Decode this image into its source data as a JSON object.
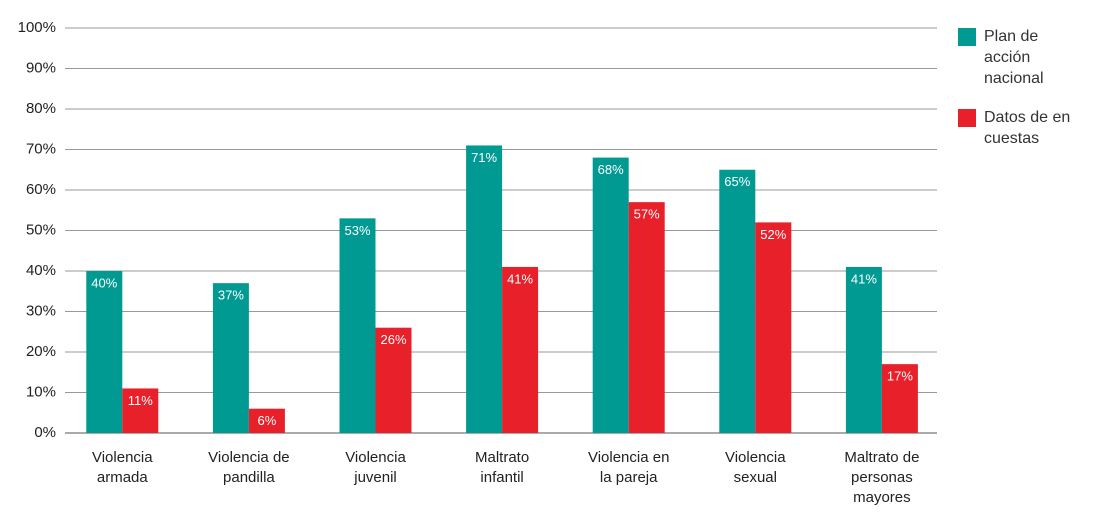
{
  "chart_data": {
    "type": "bar",
    "categories": [
      [
        "Violencia",
        "armada"
      ],
      [
        "Violencia de",
        "pandilla"
      ],
      [
        "Violencia",
        "juvenil"
      ],
      [
        "Maltrato",
        "infantil"
      ],
      [
        "Violencia  en",
        "la pareja"
      ],
      [
        "Violencia",
        "sexual"
      ],
      [
        "Maltrato de",
        "personas",
        "mayores"
      ]
    ],
    "series": [
      {
        "name": "Plan de acción nacional",
        "color": "#009a93",
        "values": [
          40,
          37,
          53,
          71,
          68,
          65,
          41
        ],
        "value_labels": [
          "40%",
          "37%",
          "53%",
          "71%",
          "68%",
          "65%",
          "41%"
        ]
      },
      {
        "name": "Datos de en cuestas",
        "color": "#e8202a",
        "values": [
          11,
          6,
          26,
          41,
          57,
          52,
          17
        ],
        "value_labels": [
          "11%",
          "6%",
          "26%",
          "41%",
          "57%",
          "52%",
          "17%"
        ]
      }
    ],
    "ylim": [
      0,
      100
    ],
    "yticks": [
      {
        "value": 0,
        "label": "0%"
      },
      {
        "value": 10,
        "label": "10%"
      },
      {
        "value": 20,
        "label": "20%"
      },
      {
        "value": 30,
        "label": "30%"
      },
      {
        "value": 40,
        "label": "40%"
      },
      {
        "value": 50,
        "label": "50%"
      },
      {
        "value": 60,
        "label": "60%"
      },
      {
        "value": 70,
        "label": "70%"
      },
      {
        "value": 80,
        "label": "80%"
      },
      {
        "value": 90,
        "label": "90%"
      },
      {
        "value": 100,
        "label": "100%"
      }
    ],
    "grid": true,
    "legend": "right"
  }
}
